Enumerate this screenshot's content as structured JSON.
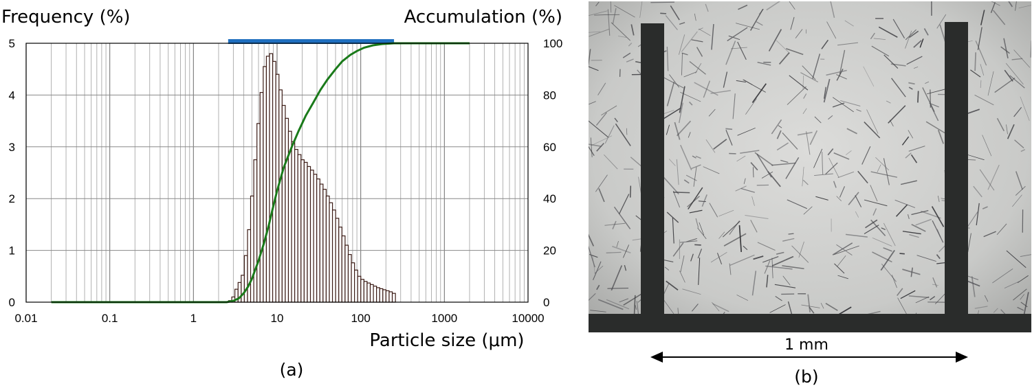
{
  "chart_data": {
    "type": "bar",
    "x_scale": "log",
    "xlim": [
      0.01,
      10000
    ],
    "ylim_left": [
      0,
      5
    ],
    "ylim_right": [
      0,
      100
    ],
    "left_axis_title": "Frequency (%)",
    "right_axis_title": "Accumulation (%)",
    "xlabel": "Particle size (μm)",
    "x_ticks": [
      "0.01",
      "0.1",
      "1",
      "10",
      "100",
      "1000",
      "10000"
    ],
    "y_ticks_left": [
      "0",
      "1",
      "2",
      "3",
      "4",
      "5"
    ],
    "y_ticks_right": [
      "0",
      "20",
      "40",
      "60",
      "80",
      "100"
    ],
    "grid": true,
    "colors": {
      "bars_edge": "#3a1a14",
      "bars_fill": "#ffffff",
      "cumulative_line": "#1a7a1a",
      "range_bar": "#1f6fbf"
    },
    "range_bar": {
      "x_start": 2.6,
      "x_end": 250
    },
    "frequency": {
      "sizes": [
        2.75,
        3.0,
        3.27,
        3.57,
        3.89,
        4.24,
        4.63,
        5.04,
        5.5,
        6.0,
        6.54,
        7.13,
        7.78,
        8.48,
        9.25,
        10.09,
        11.0,
        12.0,
        13.08,
        14.27,
        15.56,
        16.97,
        18.5,
        20.18,
        22.0,
        24.0,
        26.16,
        28.53,
        31.11,
        33.93,
        37.0,
        40.35,
        44.0,
        47.98,
        52.33,
        57.06,
        62.23,
        67.86,
        74.0,
        80.7,
        88.0,
        95.96,
        104.7,
        114.1,
        124.5,
        135.7,
        148.0,
        161.4,
        176.0,
        191.9,
        209.3,
        228.2,
        248.9
      ],
      "values": [
        0.03,
        0.1,
        0.25,
        0.38,
        0.52,
        0.9,
        1.4,
        2.05,
        2.75,
        3.45,
        4.05,
        4.55,
        4.75,
        4.8,
        4.65,
        4.4,
        4.1,
        3.8,
        3.55,
        3.3,
        3.1,
        2.95,
        2.85,
        2.75,
        2.7,
        2.62,
        2.55,
        2.47,
        2.38,
        2.28,
        2.18,
        2.05,
        1.92,
        1.78,
        1.62,
        1.45,
        1.28,
        1.1,
        0.92,
        0.76,
        0.62,
        0.5,
        0.44,
        0.4,
        0.37,
        0.34,
        0.31,
        0.28,
        0.26,
        0.24,
        0.22,
        0.2,
        0.17
      ]
    },
    "cumulative": {
      "sizes": [
        0.02,
        2.5,
        3.0,
        3.5,
        4.0,
        4.5,
        5.0,
        6.0,
        7.0,
        8.0,
        9.0,
        10.0,
        12.0,
        15.0,
        18.0,
        22.0,
        27.0,
        33.0,
        40.0,
        50.0,
        60.0,
        75.0,
        90.0,
        110.0,
        140.0,
        180.0,
        250.0,
        2000.0
      ],
      "values": [
        0,
        0,
        0.5,
        1.5,
        3.5,
        6,
        9,
        16,
        23,
        30,
        37,
        43,
        52,
        60,
        66,
        72,
        77,
        82,
        86,
        90,
        93,
        95.5,
        97,
        98.3,
        99.2,
        99.7,
        100,
        100
      ]
    }
  },
  "panel_a_label": "(a)",
  "panel_b": {
    "scale_label": "1 mm",
    "label": "(b)"
  }
}
